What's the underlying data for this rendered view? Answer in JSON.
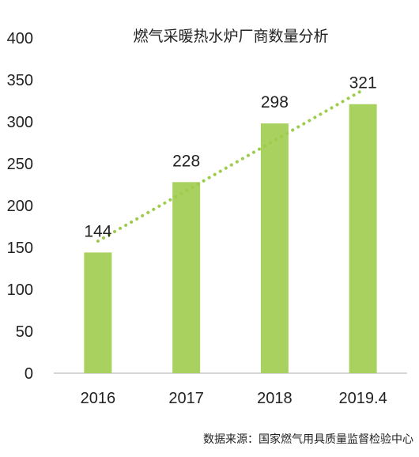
{
  "chart_data": {
    "type": "bar",
    "title": "燃气采暖热水炉厂商数量分析",
    "categories": [
      "2016",
      "2017",
      "2018",
      "2019.4"
    ],
    "values": [
      144,
      228,
      298,
      321
    ],
    "data_labels": [
      "144",
      "228",
      "298",
      "321"
    ],
    "ylim": [
      0,
      400
    ],
    "y_ticks": [
      0,
      50,
      100,
      150,
      200,
      250,
      300,
      350,
      400
    ],
    "y_tick_labels": [
      "0",
      "50",
      "100",
      "150",
      "200",
      "250",
      "300",
      "350",
      "400"
    ],
    "xlabel": "",
    "ylabel": "",
    "grid": false,
    "legend": "none",
    "trendline": {
      "type": "linear",
      "style": "dotted"
    },
    "colors": {
      "bar": "#a9d160",
      "trendline": "#9ccc4a",
      "axis": "#c8c8c8",
      "text": "#222222"
    }
  },
  "source_note": "数据来源：国家燃气用具质量监督检验中心"
}
